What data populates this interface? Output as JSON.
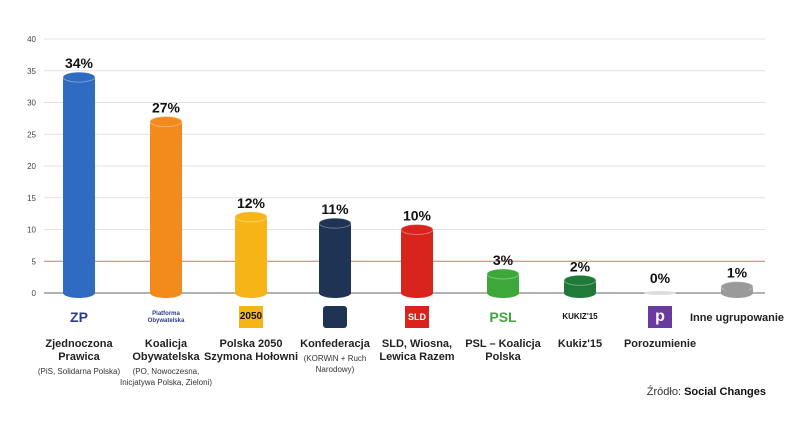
{
  "chart_data": {
    "type": "bar",
    "ylim": [
      0,
      40
    ],
    "yticks": [
      0,
      5,
      10,
      15,
      20,
      25,
      30,
      35,
      40
    ],
    "highlight_line": 5,
    "grid": true,
    "categories": [
      {
        "name": "Zjednoczona Prawica",
        "sub": "(PiS, Solidarna Polska)",
        "logo": "ZP",
        "value": 34,
        "label": "34%",
        "color": "#2f6bc0"
      },
      {
        "name": "Koalicja Obywatelska",
        "sub": "(PO, Nowoczesna, Inicjatywa Polska, Zieloni)",
        "logo": "Platforma Obywatelska",
        "value": 27,
        "label": "27%",
        "color": "#f28a1c"
      },
      {
        "name": "Polska 2050 Szymona Hołowni",
        "sub": "",
        "logo": "2050",
        "value": 12,
        "label": "12%",
        "color": "#f6b416"
      },
      {
        "name": "Konfederacja",
        "sub": "(KORWiN + Ruch Narodowy)",
        "logo": "",
        "value": 11,
        "label": "11%",
        "color": "#1f3354"
      },
      {
        "name": "SLD, Wiosna, Lewica Razem",
        "sub": "",
        "logo": "SLD",
        "value": 10,
        "label": "10%",
        "color": "#d9241d"
      },
      {
        "name": "PSL – Koalicja Polska",
        "sub": "",
        "logo": "PSL",
        "value": 3,
        "label": "3%",
        "color": "#3ca83a"
      },
      {
        "name": "Kukiz'15",
        "sub": "",
        "logo": "KUKIZ'15",
        "value": 2,
        "label": "2%",
        "color": "#1f7a3a"
      },
      {
        "name": "Porozumienie",
        "sub": "",
        "logo": "p",
        "value": 0,
        "label": "0%",
        "color": "#6a3aa0"
      },
      {
        "name": "Inne ugrupowanie",
        "sub": "",
        "logo": "",
        "value": 1,
        "label": "1%",
        "color": "#9a9a9a"
      }
    ]
  },
  "source": {
    "prefix": "Źródło:",
    "name": "Social Changes"
  }
}
